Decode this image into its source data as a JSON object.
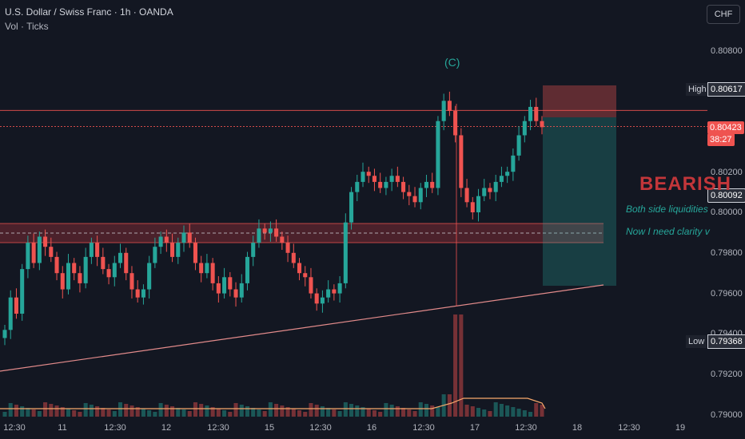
{
  "legend": {
    "symbol": "U.S. Dollar / Swiss Franc · 1h · OANDA",
    "indicator": "Vol · Ticks"
  },
  "currency_button": "CHF",
  "y_axis_labels": [
    "0.80800",
    "0.80200",
    "0.80000",
    "0.79800",
    "0.79600",
    "0.79400",
    "0.79200",
    "0.79000"
  ],
  "x_axis_labels": [
    "12:30",
    "11",
    "12:30",
    "12",
    "12:30",
    "15",
    "12:30",
    "16",
    "12:30",
    "17",
    "12:30",
    "18",
    "12:30",
    "19"
  ],
  "price_badges": {
    "high_label": "High",
    "high_value": "0.80617",
    "current_price": "0.80423",
    "countdown": "38:27",
    "level_value": "0.80092",
    "low_label": "Low",
    "low_value": "0.79368"
  },
  "annotations": {
    "wave_label": "(C)",
    "bearish_text": "BEARISH",
    "note1": "Both side liquidities",
    "note2": "Now I need clarity v"
  },
  "colors": {
    "background": "#131722",
    "bull": "#26a69a",
    "bear": "#ef5350",
    "zone": "#7a2a33",
    "trendline": "#e38b8b"
  },
  "chart_data": {
    "type": "candlestick",
    "title": "U.S. Dollar / Swiss Franc · 1h · OANDA",
    "ylim": [
      0.79,
      0.8085
    ],
    "candles_start": [
      0.7942,
      0.7958,
      0.795,
      0.7972,
      0.7985,
      0.7975,
      0.7988,
      0.7983,
      0.7978,
      0.797,
      0.7962,
      0.7975,
      0.797,
      0.7965,
      0.7978,
      0.7985,
      0.7978,
      0.7972,
      0.7968,
      0.7975,
      0.798,
      0.797,
      0.7962,
      0.7958,
      0.7962,
      0.7975,
      0.7983,
      0.7988,
      0.7985,
      0.7978,
      0.7985,
      0.799,
      0.7985,
      0.7975,
      0.797,
      0.7975,
      0.7965,
      0.796,
      0.7968,
      0.7962,
      0.7958,
      0.7965,
      0.7978,
      0.7985,
      0.7992,
      0.799,
      0.7992,
      0.7988,
      0.7985,
      0.798,
      0.7975,
      0.797,
      0.7968,
      0.796,
      0.7955,
      0.7958,
      0.7962,
      0.796
    ],
    "candles_end_points": [
      0.7965,
      0.7995,
      0.801,
      0.8015,
      0.802,
      0.8018,
      0.8015,
      0.8012,
      0.8015,
      0.8018,
      0.8015,
      0.801,
      0.8008,
      0.8005,
      0.8012,
      0.8015,
      0.8012,
      0.8045,
      0.8055,
      0.805,
      0.8038,
      0.8012,
      0.8005,
      0.8,
      0.8008,
      0.8012,
      0.801,
      0.8015,
      0.8018,
      0.802,
      0.8028,
      0.8038,
      0.8045,
      0.8052,
      0.8045,
      0.8042
    ],
    "levels": {
      "high": 0.80617,
      "current": 0.80423,
      "level": 0.80092,
      "low": 0.79368
    }
  }
}
